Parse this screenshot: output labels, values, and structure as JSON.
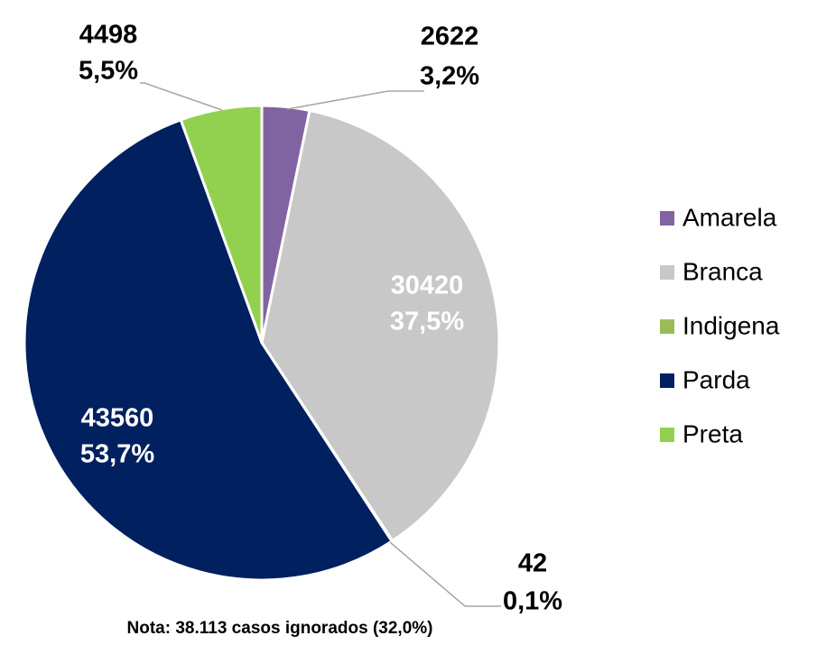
{
  "chart_data": {
    "type": "pie",
    "categories": [
      "Amarela",
      "Branca",
      "Indigena",
      "Parda",
      "Preta"
    ],
    "values": [
      2622,
      30420,
      42,
      43560,
      4498
    ],
    "percentages": [
      3.2,
      37.5,
      0.1,
      53.7,
      5.5
    ],
    "percentage_labels": [
      "3,2%",
      "37,5%",
      "0,1%",
      "53,7%",
      "5,5%"
    ],
    "colors": [
      "#8064a2",
      "#c8c8c8",
      "#9bbb59",
      "#002060",
      "#92d050"
    ],
    "legend": "right",
    "note": "Nota: 38.113 casos ignorados (32,0%)"
  }
}
